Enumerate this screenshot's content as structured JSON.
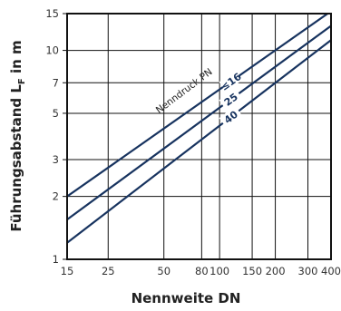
{
  "chart_data": {
    "type": "line",
    "x_scale": "log",
    "y_scale": "log",
    "xlabel": "Nennweite DN",
    "ylabel_main": "Führungsabstand L",
    "ylabel_sub": "F",
    "ylabel_unit": " in m",
    "xlim": [
      15,
      400
    ],
    "ylim": [
      1,
      15
    ],
    "grid": true,
    "x_ticks": [
      15,
      25,
      50,
      80,
      100,
      150,
      200,
      300,
      400
    ],
    "x_tick_labels": [
      "15",
      "25",
      "50",
      "80",
      "100",
      "150",
      "200",
      "300",
      "400"
    ],
    "y_ticks": [
      1,
      2,
      3,
      5,
      7,
      10,
      15
    ],
    "y_tick_labels": [
      "1",
      "2",
      "3",
      "5",
      "7",
      "10",
      "15"
    ],
    "annotation": "Nenndruck PN",
    "series": [
      {
        "label": "≤16",
        "x": [
          15,
          400
        ],
        "y": [
          2.0,
          15.4
        ]
      },
      {
        "label": "25",
        "x": [
          15,
          400
        ],
        "y": [
          1.55,
          13.1
        ]
      },
      {
        "label": "40",
        "x": [
          15,
          400
        ],
        "y": [
          1.2,
          11.2
        ]
      }
    ],
    "colors": {
      "line": "#17335f",
      "grid": "#111111",
      "frame": "#111111"
    }
  }
}
